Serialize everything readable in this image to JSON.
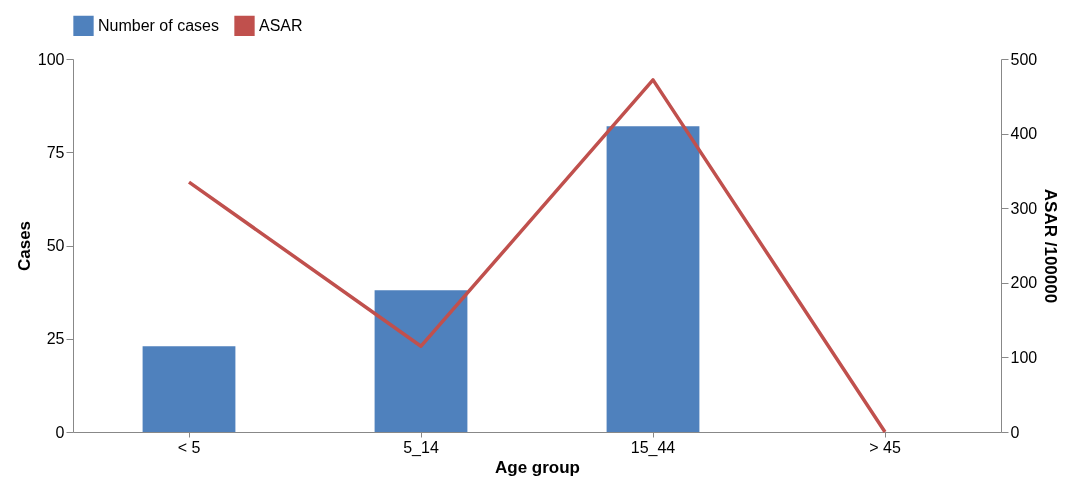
{
  "chart_data": {
    "type": "bar",
    "xlabel": "Age group",
    "ylabel": "Cases",
    "y2label": "ASAR /100000",
    "categories": [
      "< 5",
      "5_14",
      "15_44",
      "> 45"
    ],
    "series": [
      {
        "name": "Number of cases",
        "color": "#4f81bd",
        "values": [
          23,
          38,
          82,
          0
        ]
      },
      {
        "name": "ASAR",
        "type": "line",
        "axis": "y2",
        "color": "#c0504d",
        "values": [
          335,
          115,
          472,
          0
        ]
      }
    ],
    "ylim": [
      0,
      100
    ],
    "yticks": [
      0,
      25,
      50,
      75,
      100
    ],
    "y2lim": [
      0,
      500
    ],
    "y2ticks": [
      0,
      100,
      200,
      300,
      400,
      500
    ],
    "legend": "top",
    "grid": false,
    "marker": "none"
  }
}
